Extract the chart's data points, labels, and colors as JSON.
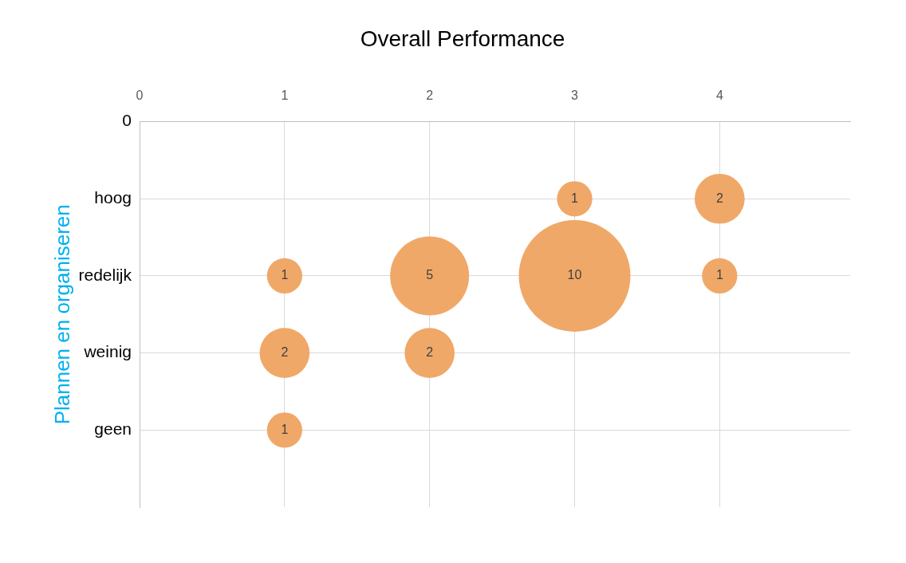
{
  "chart_data": {
    "type": "bubble",
    "orientation": "horizontal",
    "title": "Overall Performance",
    "ylabel": "Plannen en organiseren",
    "categories": [
      "0",
      "hoog",
      "redelijk",
      "weinig",
      "geen",
      null
    ],
    "series": [
      {
        "color": "#f0a868",
        "values": [
          null,
          3,
          1,
          1,
          1,
          null
        ],
        "sizes": [
          null,
          0.1,
          0.1,
          0.2,
          0.1,
          null
        ]
      },
      {
        "color": "#f0a868",
        "values": [
          null,
          4,
          2,
          2,
          null,
          null
        ],
        "sizes": [
          null,
          0.2,
          0.5,
          0.2,
          null,
          null
        ]
      },
      {
        "color": "#f0a868",
        "values": [
          null,
          null,
          3,
          null,
          null,
          null
        ],
        "sizes": [
          null,
          null,
          1,
          null,
          null,
          null
        ]
      },
      {
        "color": "#f0a868",
        "values": [
          null,
          null,
          4,
          null,
          null,
          null
        ],
        "sizes": [
          null,
          null,
          0.1,
          null,
          null,
          null
        ]
      }
    ],
    "annotations": [
      {
        "text": "1",
        "x": 3,
        "y": "hoog"
      },
      {
        "text": "2",
        "x": 4,
        "y": "hoog"
      },
      {
        "text": "1",
        "x": 1,
        "y": "redelijk"
      },
      {
        "text": "5",
        "x": 2,
        "y": "redelijk"
      },
      {
        "text": "10",
        "x": 3,
        "y": "redelijk"
      },
      {
        "text": "1",
        "x": 4,
        "y": "redelijk"
      },
      {
        "text": "2",
        "x": 1,
        "y": "weinig"
      },
      {
        "text": "2",
        "x": 2,
        "y": "weinig"
      },
      {
        "text": "1",
        "x": 1,
        "y": "geen"
      }
    ],
    "xlim": [
      0,
      4.9
    ],
    "xticks": [
      0,
      1,
      2,
      3,
      4
    ],
    "grid": true
  }
}
